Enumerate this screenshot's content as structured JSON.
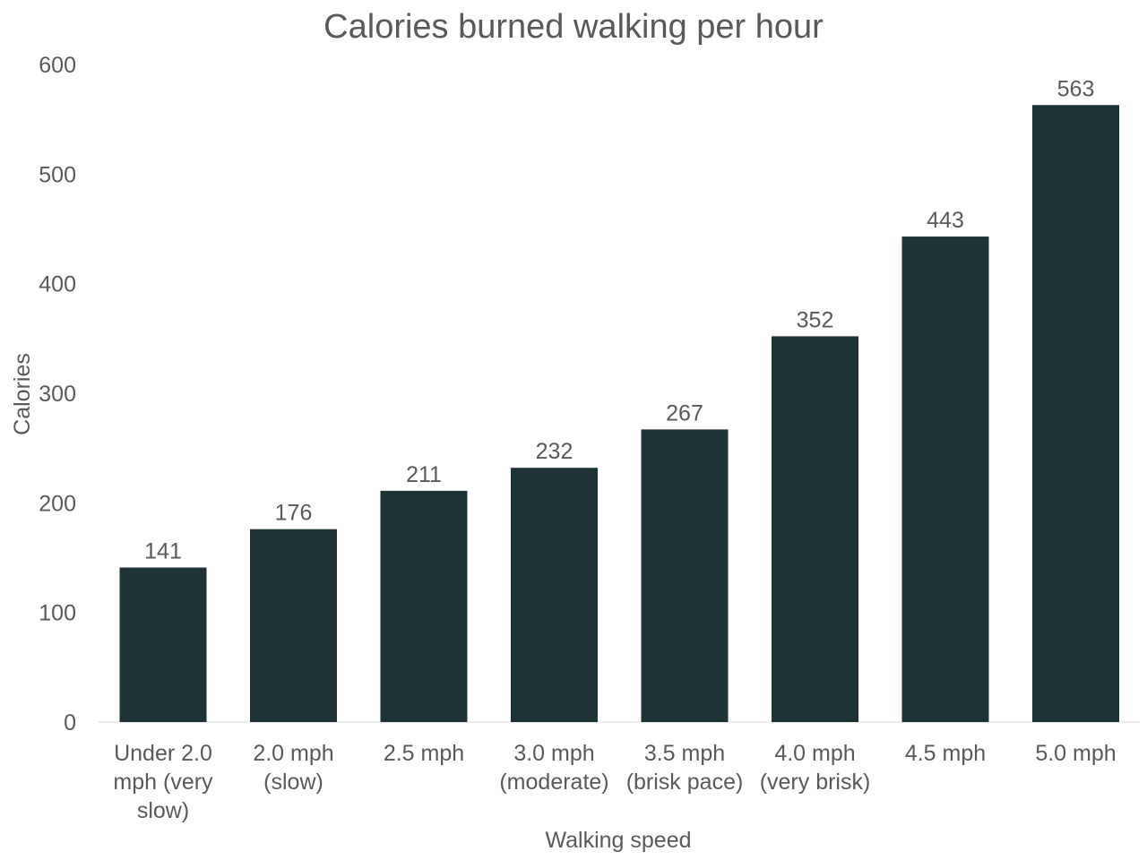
{
  "chart_data": {
    "type": "bar",
    "title": "Calories burned walking per hour",
    "xlabel": "Walking speed",
    "ylabel": "Calories",
    "ylim": [
      0,
      600
    ],
    "yticks": [
      0,
      100,
      200,
      300,
      400,
      500,
      600
    ],
    "grid": false,
    "bar_color": "#1d3336",
    "categories": [
      [
        "Under 2.0",
        "mph (very",
        "slow)"
      ],
      [
        "2.0 mph",
        "(slow)"
      ],
      [
        "2.5 mph"
      ],
      [
        "3.0 mph",
        "(moderate)"
      ],
      [
        "3.5 mph",
        "(brisk pace)"
      ],
      [
        "4.0 mph",
        "(very brisk)"
      ],
      [
        "4.5 mph"
      ],
      [
        "5.0 mph"
      ]
    ],
    "values": [
      141,
      176,
      211,
      232,
      267,
      352,
      443,
      563
    ]
  }
}
